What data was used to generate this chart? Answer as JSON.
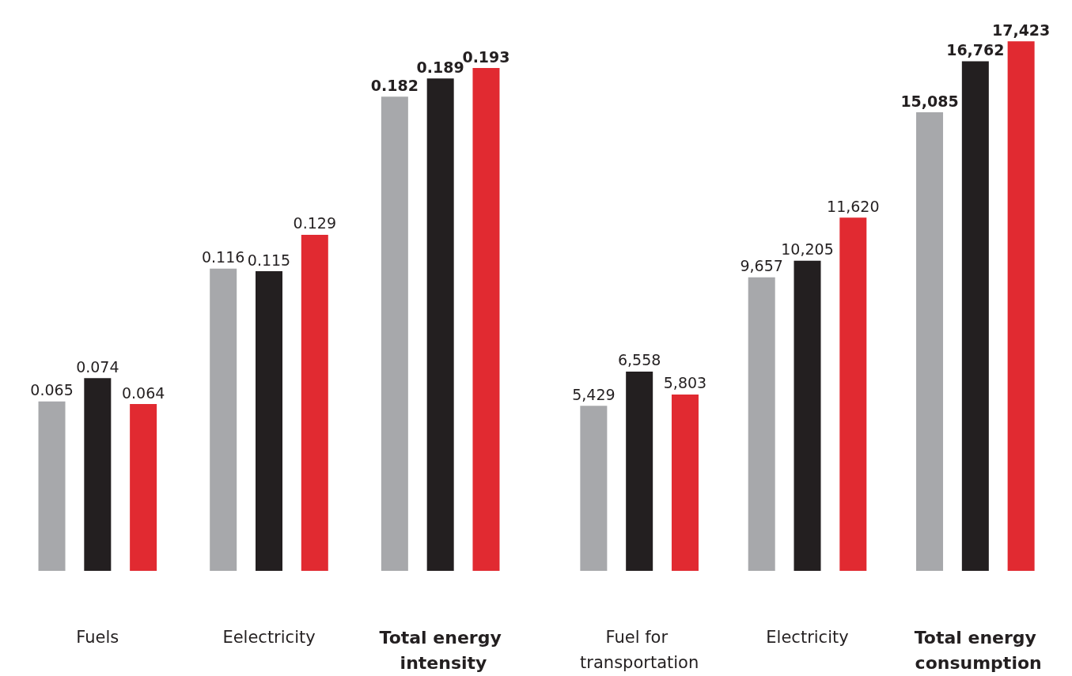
{
  "chart_data": [
    {
      "type": "bar",
      "categories": [
        "Fuels",
        "Eelectricity",
        "Total energy intensity"
      ],
      "data_labels": true,
      "tick_labels": "x",
      "series": [
        {
          "color": "#a7a8ab",
          "values": [
            0.065,
            0.116,
            0.182
          ]
        },
        {
          "color": "#231f20",
          "values": [
            0.074,
            0.115,
            0.189
          ]
        },
        {
          "color": "#e12a31",
          "values": [
            0.064,
            0.129,
            0.193
          ]
        }
      ]
    },
    {
      "type": "bar",
      "categories": [
        "Fuel for transportation",
        "Electricity",
        "Total energy consumption"
      ],
      "tick_labels": "x",
      "series": [
        {
          "color": "#a7a8ab",
          "values": [
            5429,
            9657,
            15085
          ],
          "value_labels": [
            "5,429",
            "9,657",
            "15,085"
          ]
        },
        {
          "color": "#231f20",
          "values": [
            6558,
            10205,
            16762
          ],
          "value_labels": [
            "6,558",
            "10,205",
            "16,762"
          ]
        },
        {
          "color": "#e12a31",
          "values": [
            5803,
            11620,
            17423
          ],
          "value_labels": [
            "5,803",
            "11,620",
            "17,423"
          ]
        }
      ]
    }
  ]
}
